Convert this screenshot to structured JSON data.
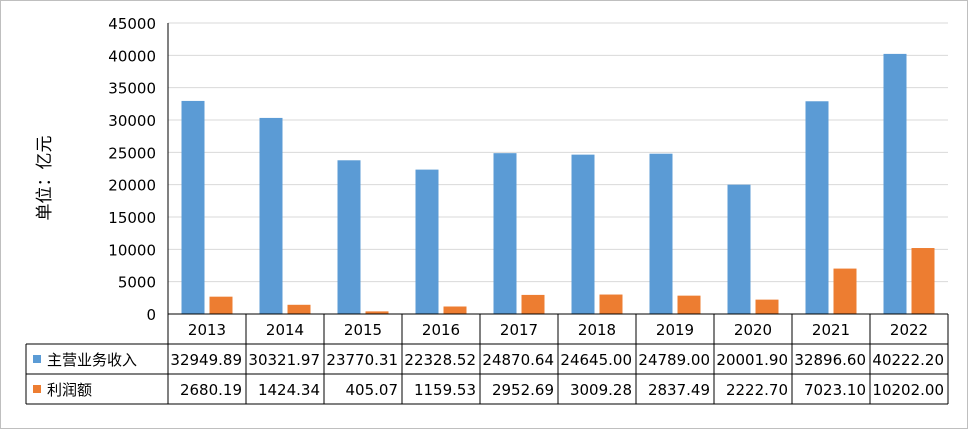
{
  "chart_data": {
    "type": "bar",
    "ylabel": "单位：亿元",
    "ylim": [
      0,
      45000
    ],
    "ytick_step": 5000,
    "categories": [
      "2013",
      "2014",
      "2015",
      "2016",
      "2017",
      "2018",
      "2019",
      "2020",
      "2021",
      "2022"
    ],
    "series": [
      {
        "name": "主营业务收入",
        "color": "#5B9BD5",
        "values": [
          32949.89,
          30321.97,
          23770.31,
          22328.52,
          24870.64,
          24645.0,
          24789.0,
          20001.9,
          32896.6,
          40222.2
        ],
        "labels": [
          "32949.89",
          "30321.97",
          "23770.31",
          "22328.52",
          "24870.64",
          "24645.00",
          "24789.00",
          "20001.90",
          "32896.60",
          "40222.20"
        ]
      },
      {
        "name": "利润额",
        "color": "#ED7D31",
        "values": [
          2680.19,
          1424.34,
          405.07,
          1159.53,
          2952.69,
          3009.28,
          2837.49,
          2222.7,
          7023.1,
          10202.0
        ],
        "labels": [
          "2680.19",
          "1424.34",
          "405.07",
          "1159.53",
          "2952.69",
          "3009.28",
          "2837.49",
          "2222.70",
          "7023.10",
          "10202.00"
        ]
      }
    ],
    "grid": true,
    "legend": "data-table"
  }
}
